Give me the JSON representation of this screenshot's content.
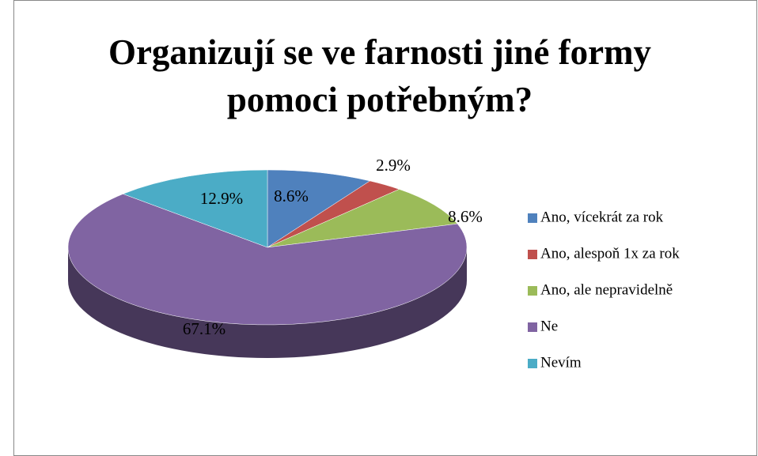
{
  "chart_data": {
    "type": "pie",
    "title": "Organizují se ve farnosti jiné formy pomoci potřebným?",
    "categories": [
      "Ano, vícekrát za rok",
      "Ano, alespoň 1x za rok",
      "Ano, ale nepravidelně",
      "Ne",
      "Nevím"
    ],
    "values": [
      8.6,
      2.9,
      8.6,
      67.1,
      12.9
    ],
    "value_labels": [
      "8.6%",
      "2.9%",
      "8.6%",
      "67.1%",
      "12.9%"
    ],
    "colors": [
      "#4f81bd",
      "#c0504d",
      "#9bbb59",
      "#8064a2",
      "#4bacc6"
    ],
    "legend": "right"
  }
}
